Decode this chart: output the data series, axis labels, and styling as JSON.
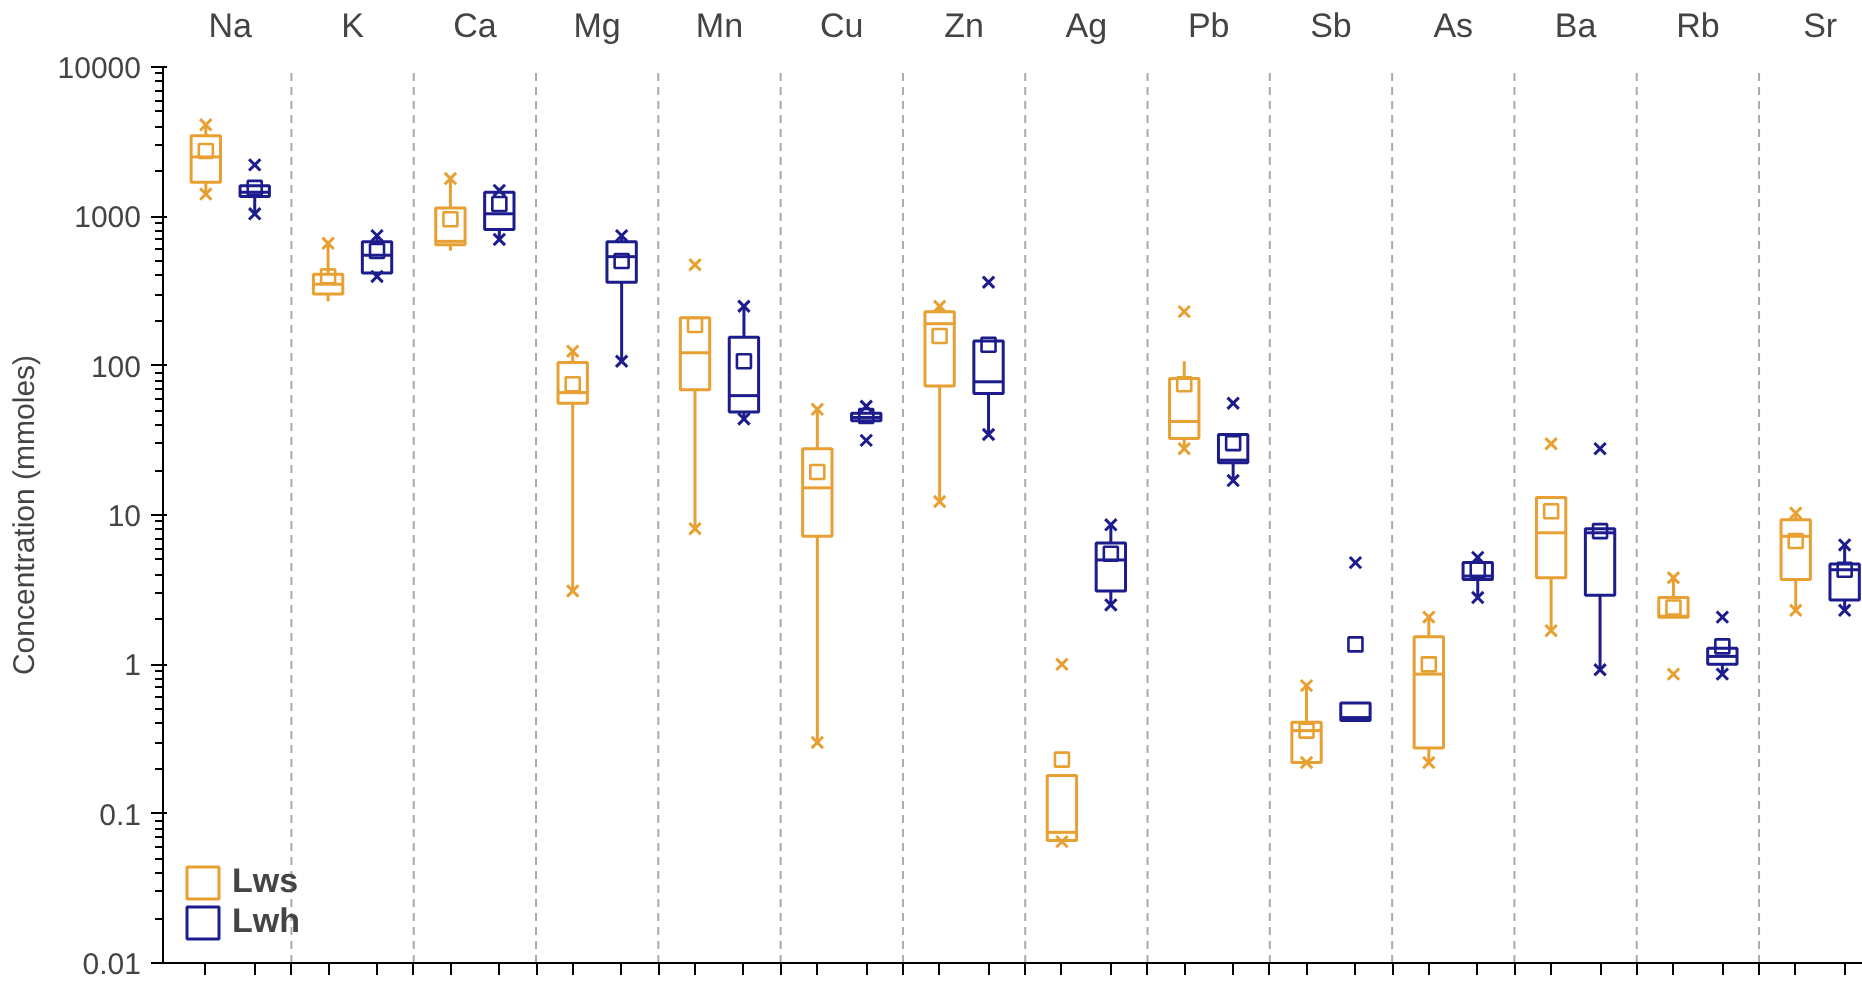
{
  "chart_data": {
    "type": "box",
    "ylabel": "Concentration (mmoles)",
    "categories": [
      "Na",
      "K",
      "Ca",
      "Mg",
      "Mn",
      "Cu",
      "Zn",
      "Ag",
      "Pb",
      "Sb",
      "As",
      "Ba",
      "Rb",
      "Sr"
    ],
    "log": true,
    "ylim": [
      0.01,
      10000
    ],
    "yticks": [
      0.01,
      0.1,
      1,
      10,
      100,
      1000,
      10000
    ],
    "grid": "x",
    "legend": "bottom left",
    "series": [
      {
        "name": "Lws",
        "color": "#e8a033",
        "boxes": [
          {
            "low": 1410,
            "q1": 1690,
            "median": 2500,
            "q3": 3470,
            "high": 4100,
            "mean": 2740,
            "outliers": [
              1410,
              4100
            ]
          },
          {
            "low": 270,
            "q1": 302,
            "median": 351,
            "q3": 409,
            "high": 660,
            "mean": 396,
            "outliers": [
              660
            ]
          },
          {
            "low": 588,
            "q1": 645,
            "median": 680,
            "q3": 1137,
            "high": 1790,
            "mean": 955,
            "outliers": [
              1790
            ]
          },
          {
            "low": 3.1,
            "q1": 56,
            "median": 66,
            "q3": 105,
            "high": 125,
            "mean": 75,
            "outliers": [
              3.1,
              125
            ]
          },
          {
            "low": 8.1,
            "q1": 69,
            "median": 122,
            "q3": 209,
            "high": 209,
            "mean": 187,
            "outliers": [
              8.1,
              474
            ]
          },
          {
            "low": 0.3,
            "q1": 7.2,
            "median": 15.2,
            "q3": 27.8,
            "high": 51,
            "mean": 19.4,
            "outliers": [
              0.3,
              51
            ]
          },
          {
            "low": 12.3,
            "q1": 73,
            "median": 191,
            "q3": 230,
            "high": 250,
            "mean": 158,
            "outliers": [
              12.3,
              250
            ]
          },
          {
            "low": 0.066,
            "q1": 0.066,
            "median": 0.075,
            "q3": 0.18,
            "high": 0.18,
            "mean": 0.23,
            "outliers": [
              0.065,
              1.0
            ]
          },
          {
            "low": 27.8,
            "q1": 32.5,
            "median": 42.3,
            "q3": 82,
            "high": 107,
            "mean": 75,
            "outliers": [
              27.8,
              230
            ]
          },
          {
            "low": 0.22,
            "q1": 0.22,
            "median": 0.36,
            "q3": 0.41,
            "high": 0.72,
            "mean": 0.36,
            "outliers": [
              0.22,
              0.72
            ]
          },
          {
            "low": 0.22,
            "q1": 0.275,
            "median": 0.86,
            "q3": 1.53,
            "high": 2.07,
            "mean": 1.0,
            "outliers": [
              0.22,
              2.07
            ]
          },
          {
            "low": 1.68,
            "q1": 3.8,
            "median": 7.6,
            "q3": 13.1,
            "high": 13.1,
            "mean": 10.6,
            "outliers": [
              1.68,
              30
            ]
          },
          {
            "low": 2.07,
            "q1": 2.07,
            "median": 2.1,
            "q3": 2.8,
            "high": 3.8,
            "mean": 2.4,
            "outliers": [
              0.86,
              3.8
            ]
          },
          {
            "low": 2.3,
            "q1": 3.7,
            "median": 7.2,
            "q3": 9.3,
            "high": 10.3,
            "mean": 6.7,
            "outliers": [
              2.3,
              10.3
            ]
          }
        ]
      },
      {
        "name": "Lwh",
        "color": "#1c1c8c",
        "boxes": [
          {
            "low": 1040,
            "q1": 1360,
            "median": 1450,
            "q3": 1600,
            "high": 1600,
            "mean": 1550,
            "outliers": [
              1040,
              2210
            ]
          },
          {
            "low": 396,
            "q1": 417,
            "median": 549,
            "q3": 675,
            "high": 743,
            "mean": 586,
            "outliers": [
              396,
              743
            ]
          },
          {
            "low": 700,
            "q1": 815,
            "median": 1040,
            "q3": 1450,
            "high": 1490,
            "mean": 1210,
            "outliers": [
              700,
              1490
            ]
          },
          {
            "low": 107,
            "q1": 362,
            "median": 537,
            "q3": 675,
            "high": 743,
            "mean": 502,
            "outliers": [
              107,
              743
            ]
          },
          {
            "low": 44,
            "q1": 49,
            "median": 63,
            "q3": 155,
            "high": 250,
            "mean": 107,
            "outliers": [
              44,
              250
            ]
          },
          {
            "low": 42.7,
            "q1": 42.7,
            "median": 45,
            "q3": 48,
            "high": 48,
            "mean": 46,
            "outliers": [
              31.6,
              53.5
            ]
          },
          {
            "low": 34.6,
            "q1": 65,
            "median": 78,
            "q3": 146,
            "high": 146,
            "mean": 138,
            "outliers": [
              34.6,
              362
            ]
          },
          {
            "low": 2.5,
            "q1": 3.1,
            "median": 5.0,
            "q3": 6.5,
            "high": 8.6,
            "mean": 5.5,
            "outliers": [
              2.5,
              8.6
            ]
          },
          {
            "low": 17,
            "q1": 22.4,
            "median": 23.3,
            "q3": 34.6,
            "high": 34.6,
            "mean": 30.3,
            "outliers": [
              17,
              56
            ]
          },
          {
            "low": 0.42,
            "q1": 0.42,
            "median": 0.44,
            "q3": 0.55,
            "high": 0.55,
            "mean": 1.36,
            "outliers": [
              4.8
            ]
          },
          {
            "low": 2.8,
            "q1": 3.7,
            "median": 3.9,
            "q3": 4.8,
            "high": 5.2,
            "mean": 4.3,
            "outliers": [
              2.8,
              5.2
            ]
          },
          {
            "low": 0.92,
            "q1": 2.9,
            "median": 7.6,
            "q3": 8.1,
            "high": 8.1,
            "mean": 7.8,
            "outliers": [
              0.92,
              27.8
            ]
          },
          {
            "low": 0.86,
            "q1": 1.0,
            "median": 1.13,
            "q3": 1.28,
            "high": 1.28,
            "mean": 1.32,
            "outliers": [
              0.86,
              2.07
            ]
          },
          {
            "low": 2.3,
            "q1": 2.7,
            "median": 4.3,
            "q3": 4.7,
            "high": 6.3,
            "mean": 4.3,
            "outliers": [
              2.3,
              6.3
            ]
          }
        ]
      }
    ]
  }
}
